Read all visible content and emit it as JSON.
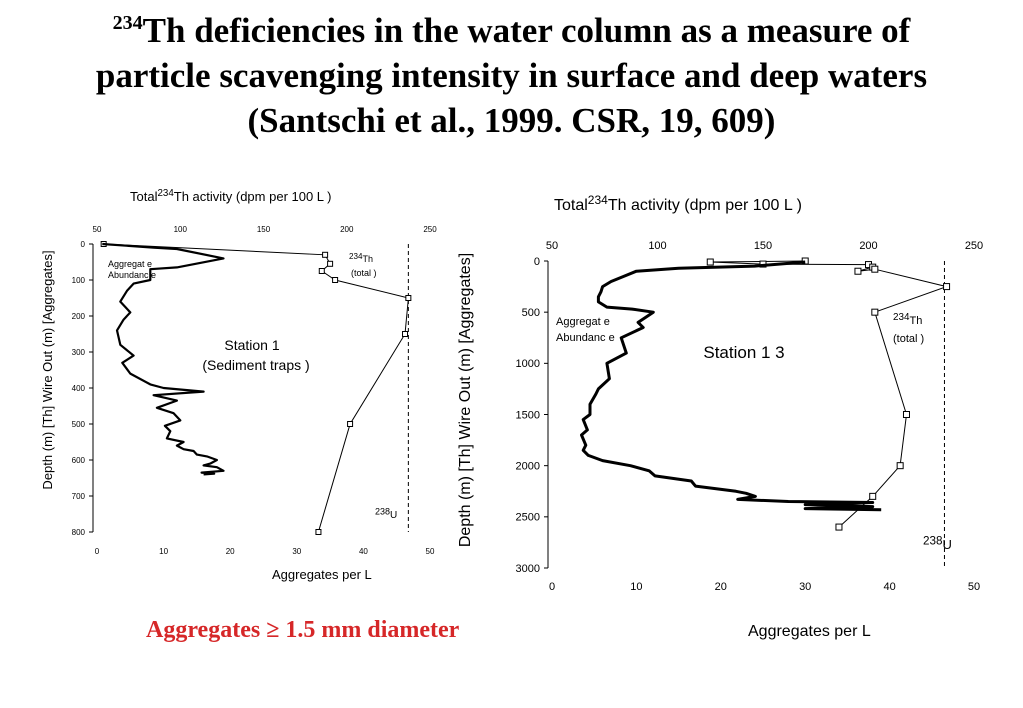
{
  "title": {
    "line1_sup": "234",
    "line1": "Th deficiencies in the water column as a measure of",
    "line2": "particle scavenging intensity in surface and deep waters",
    "line3": "(Santschi et al., 1999. CSR, 19, 609)"
  },
  "footnote": "Aggregates ≥ 1.5 mm diameter",
  "colors": {
    "footnote": "#d62728",
    "ink": "#000000"
  },
  "chart_data": [
    {
      "type": "line",
      "top_axis_label": "Total 234Th activity (dpm per 100 L )",
      "top_axis_label_pre": "Total ",
      "top_axis_label_sup": "234",
      "top_axis_label_post": "Th activity (dpm per 100 L )",
      "bottom_axis_label": "Aggregates per  L",
      "left_axis_label": "Depth (m) [Th]  Wire Out (m) [Aggregates]",
      "top_xlim": [
        50,
        250
      ],
      "top_ticks": [
        "50",
        "100",
        "150",
        "200",
        "250"
      ],
      "bottom_xlim": [
        0,
        50
      ],
      "bottom_ticks": [
        "0",
        "10",
        "20",
        "30",
        "40",
        "50"
      ],
      "ylim": [
        800,
        0
      ],
      "y_ticks": [
        "0",
        "100",
        "200",
        "300",
        "400",
        "500",
        "600",
        "700",
        "800"
      ],
      "station_label": "Station  1",
      "station_sublabel": "(Sediment traps  )",
      "aggregate_label_1": "Aggregat e",
      "aggregate_label_2": "Abundanc e",
      "th_label_sup": "234",
      "th_label": "Th",
      "th_label_2": "(total )",
      "u_label_sup": "238",
      "u_label": "U",
      "u238_activity": 237,
      "series": [
        {
          "axis": "top",
          "x": [
            54,
            187,
            190,
            185,
            193,
            237,
            235,
            202,
            183
          ],
          "y": [
            0,
            30,
            55,
            75,
            100,
            150,
            250,
            500,
            800
          ]
        },
        {
          "axis": "bottom",
          "x": [
            0.8,
            8.5,
            12,
            19,
            12,
            8,
            8,
            5.5,
            4.5,
            3.5,
            5,
            4,
            3,
            3.5,
            5.5,
            3.8,
            5,
            8,
            10,
            16,
            8.5,
            12,
            9,
            11.5,
            12.5,
            10.2,
            11,
            10.5,
            13,
            12,
            13,
            14.5,
            15,
            16.5,
            18,
            17,
            16,
            18,
            19,
            15.7,
            17.6,
            16
          ],
          "y": [
            0,
            10,
            14,
            40,
            65,
            70,
            100,
            110,
            130,
            160,
            190,
            210,
            240,
            280,
            310,
            330,
            360,
            390,
            400,
            410,
            420,
            435,
            455,
            470,
            490,
            505,
            520,
            540,
            550,
            560,
            570,
            575,
            585,
            590,
            600,
            610,
            615,
            620,
            630,
            635,
            638,
            640
          ]
        }
      ]
    },
    {
      "type": "line",
      "top_axis_label": "Total 234Th activity (dpm per 100 L )",
      "top_axis_label_pre": "Total ",
      "top_axis_label_sup": "234",
      "top_axis_label_post": "Th activity (dpm per 100 L )",
      "bottom_axis_label": "Aggregates per  L",
      "left_axis_label": "Depth (m) [Th]  Wire Out (m) [Aggregates]",
      "top_xlim": [
        50,
        250
      ],
      "top_ticks": [
        "50",
        "100",
        "150",
        "200",
        "250"
      ],
      "bottom_xlim": [
        0,
        50
      ],
      "bottom_ticks": [
        "0",
        "10",
        "20",
        "30",
        "40",
        "50"
      ],
      "ylim": [
        3000,
        0
      ],
      "y_ticks": [
        "0",
        "500",
        "1000",
        "1500",
        "2000",
        "2500",
        "3000"
      ],
      "station_label": "Station 1 3",
      "aggregate_label_1": "Aggregat e",
      "aggregate_label_2": "Abundanc e",
      "th_label_sup": "234",
      "th_label": "Th",
      "th_label_2": "(total )",
      "u_label_sup": "238",
      "u_label": "U",
      "u238_activity": 236,
      "series": [
        {
          "axis": "top",
          "x": [
            170,
            125,
            150,
            200,
            202,
            195,
            203,
            237,
            203,
            218,
            215,
            202,
            186
          ],
          "y": [
            0,
            10,
            30,
            35,
            60,
            100,
            80,
            250,
            500,
            1500,
            2000,
            2300,
            2600
          ]
        },
        {
          "axis": "bottom",
          "x": [
            30,
            24,
            15,
            10,
            8.5,
            7,
            6,
            5.8,
            5.5,
            5.5,
            6.5,
            9.5,
            12,
            10.2,
            10.8,
            8.2,
            8.8,
            6.5,
            6.8,
            5.5,
            5.2,
            4.5,
            4.5,
            3.7,
            4.2,
            3.5,
            4,
            3.7,
            4.3,
            6,
            9.3,
            11.5,
            12.2,
            16.5,
            17,
            21.8,
            23,
            24.1,
            22,
            28,
            38,
            30,
            38,
            30,
            39
          ],
          "y": [
            10,
            50,
            70,
            100,
            150,
            200,
            250,
            300,
            350,
            400,
            450,
            470,
            500,
            600,
            650,
            750,
            900,
            1000,
            1150,
            1250,
            1300,
            1400,
            1500,
            1550,
            1650,
            1700,
            1800,
            1850,
            1900,
            1950,
            2000,
            2050,
            2100,
            2150,
            2200,
            2250,
            2270,
            2300,
            2330,
            2350,
            2360,
            2380,
            2400,
            2420,
            2430
          ]
        }
      ]
    }
  ]
}
